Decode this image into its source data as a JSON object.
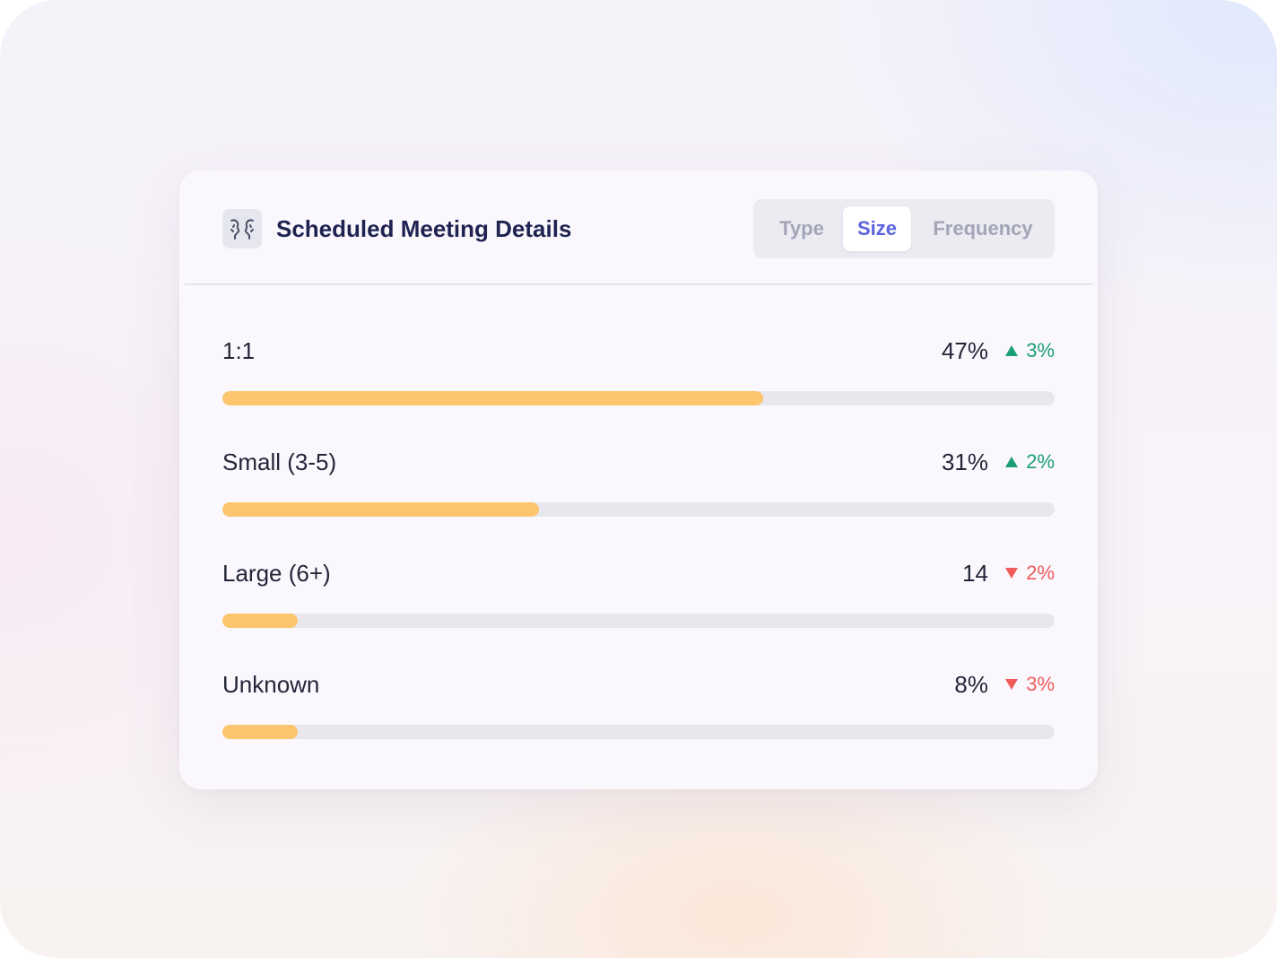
{
  "card": {
    "title": "Scheduled Meeting Details",
    "icon": "meeting-people-icon"
  },
  "tabs": [
    {
      "label": "Type",
      "active": false
    },
    {
      "label": "Size",
      "active": true
    },
    {
      "label": "Frequency",
      "active": false
    }
  ],
  "colors": {
    "accent": "#5d63e0",
    "bar_fill": "#fcc56e",
    "bar_track": "#e8e7ee",
    "up": "#1a9e74",
    "down": "#ef5b5b"
  },
  "rows": [
    {
      "label": "1:1",
      "value": "47%",
      "delta": "3%",
      "direction": "up",
      "fill": 0.65
    },
    {
      "label": "Small (3-5)",
      "value": "31%",
      "delta": "2%",
      "direction": "up",
      "fill": 0.38
    },
    {
      "label": "Large (6+)",
      "value": "14",
      "delta": "2%",
      "direction": "down",
      "fill": 0.09
    },
    {
      "label": "Unknown",
      "value": "8%",
      "delta": "3%",
      "direction": "down",
      "fill": 0.09
    }
  ]
}
